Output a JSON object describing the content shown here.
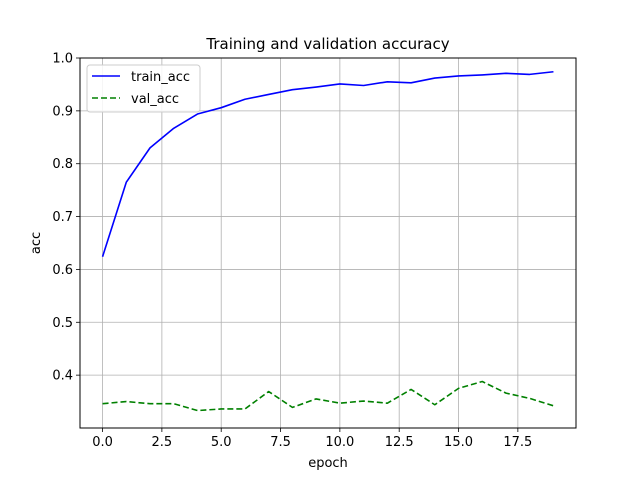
{
  "chart_data": {
    "type": "line",
    "title": "Training and validation accuracy",
    "xlabel": "epoch",
    "ylabel": "acc",
    "xlim": [
      -0.95,
      19.95
    ],
    "ylim": [
      0.3,
      1.0
    ],
    "xticks": [
      0.0,
      2.5,
      5.0,
      7.5,
      10.0,
      12.5,
      15.0,
      17.5
    ],
    "xtick_labels": [
      "0.0",
      "2.5",
      "5.0",
      "7.5",
      "10.0",
      "12.5",
      "15.0",
      "17.5"
    ],
    "yticks": [
      0.4,
      0.5,
      0.6,
      0.7,
      0.8,
      0.9,
      1.0
    ],
    "ytick_labels": [
      "0.4",
      "0.5",
      "0.6",
      "0.7",
      "0.8",
      "0.9",
      "1.0"
    ],
    "grid": true,
    "legend_position": "top-left",
    "x": [
      0,
      1,
      2,
      3,
      4,
      5,
      6,
      7,
      8,
      9,
      10,
      11,
      12,
      13,
      14,
      15,
      16,
      17,
      18,
      19
    ],
    "series": [
      {
        "name": "train_acc",
        "color": "#0000ff",
        "style": "solid",
        "values": [
          0.624,
          0.765,
          0.83,
          0.867,
          0.894,
          0.906,
          0.922,
          0.931,
          0.94,
          0.945,
          0.951,
          0.948,
          0.955,
          0.953,
          0.962,
          0.966,
          0.968,
          0.971,
          0.969,
          0.974
        ]
      },
      {
        "name": "val_acc",
        "color": "#008000",
        "style": "dashed",
        "values": [
          0.346,
          0.35,
          0.346,
          0.346,
          0.333,
          0.336,
          0.336,
          0.369,
          0.339,
          0.355,
          0.347,
          0.351,
          0.347,
          0.373,
          0.344,
          0.375,
          0.388,
          0.366,
          0.356,
          0.342
        ]
      }
    ]
  }
}
